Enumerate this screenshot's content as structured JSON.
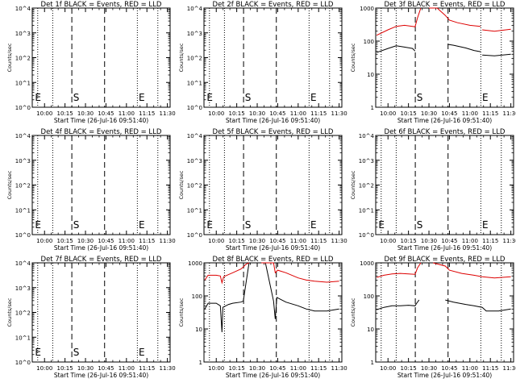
{
  "figure": {
    "xlabel": "Start Time (26-Jul-16 09:51:40)",
    "ylabel": "Counts/sec",
    "x_tick_labels": [
      "10:00",
      "10:15",
      "10:30",
      "10:45",
      "11:00",
      "11:15",
      "11:30"
    ],
    "colors": {
      "events": "#000000",
      "lld": "#dd0000",
      "axes": "#000000",
      "background": "#ffffff"
    }
  },
  "chart_data": [
    {
      "type": "line",
      "title": "Det 1f BLACK = Events, RED = LLD",
      "xlabel": "Start Time (26-Jul-16 09:51:40)",
      "ylabel": "Counts/sec",
      "xlim": [
        "09:51",
        "11:32"
      ],
      "y_scale": "log",
      "ylim": [
        1,
        10000
      ],
      "y_tick_labels": [
        "10^0",
        "10^1",
        "10^2",
        "10^3",
        "10^4"
      ],
      "vlines_dashed": [
        "10:20",
        "10:44"
      ],
      "vlines_dotted": [
        "09:55",
        "10:06",
        "11:08",
        "11:23"
      ],
      "markers": [
        {
          "text": "E",
          "x": "09:53"
        },
        {
          "text": "S",
          "x": "10:21"
        },
        {
          "text": "E",
          "x": "11:09"
        }
      ],
      "series": []
    },
    {
      "type": "line",
      "title": "Det 2f BLACK = Events, RED = LLD",
      "xlabel": "Start Time (26-Jul-16 09:51:40)",
      "ylabel": "Counts/sec",
      "xlim": [
        "09:51",
        "11:32"
      ],
      "y_scale": "log",
      "ylim": [
        1,
        10000
      ],
      "y_tick_labels": [
        "10^0",
        "10^1",
        "10^2",
        "10^3",
        "10^4"
      ],
      "vlines_dashed": [
        "10:20",
        "10:44"
      ],
      "vlines_dotted": [
        "09:55",
        "10:06",
        "11:08",
        "11:23"
      ],
      "markers": [
        {
          "text": "E",
          "x": "09:53"
        },
        {
          "text": "S",
          "x": "10:21"
        },
        {
          "text": "E",
          "x": "11:09"
        }
      ],
      "series": []
    },
    {
      "type": "line",
      "title": "Det 3f BLACK = Events, RED = LLD",
      "xlabel": "Start Time (26-Jul-16 09:51:40)",
      "ylabel": "Counts/sec",
      "xlim": [
        "09:51",
        "11:32"
      ],
      "y_scale": "log",
      "ylim": [
        1,
        1000
      ],
      "y_tick_labels": [
        "1",
        "10",
        "100",
        "1000"
      ],
      "vlines_dashed": [
        "10:20",
        "10:44"
      ],
      "vlines_dotted": [
        "09:55",
        "10:06",
        "11:08",
        "11:23"
      ],
      "markers": [
        {
          "text": "S",
          "x": "10:21"
        },
        {
          "text": "E",
          "x": "11:09"
        }
      ],
      "series": [
        {
          "name": "Events",
          "color": "#000000",
          "segments": [
            [
              [
                9.86,
                45
              ],
              [
                10.0,
                60
              ],
              [
                10.1,
                72
              ],
              [
                10.2,
                66
              ],
              [
                10.3,
                60
              ],
              [
                10.33,
                50
              ]
            ],
            [
              [
                10.73,
                80
              ],
              [
                10.8,
                75
              ],
              [
                10.95,
                62
              ],
              [
                11.05,
                52
              ],
              [
                11.13,
                48
              ]
            ],
            [
              [
                11.15,
                38
              ],
              [
                11.3,
                36
              ],
              [
                11.5,
                40
              ]
            ]
          ]
        },
        {
          "name": "LLD",
          "color": "#dd0000",
          "segments": [
            [
              [
                9.86,
                150
              ],
              [
                10.0,
                220
              ],
              [
                10.1,
                280
              ],
              [
                10.2,
                300
              ],
              [
                10.3,
                280
              ],
              [
                10.33,
                270
              ],
              [
                10.36,
                500
              ],
              [
                10.4,
                1000
              ]
            ],
            [
              [
                10.5,
                1000
              ],
              [
                10.6,
                1000
              ],
              [
                10.7,
                600
              ],
              [
                10.75,
                430
              ],
              [
                10.85,
                360
              ],
              [
                11.0,
                300
              ],
              [
                11.13,
                280
              ]
            ],
            [
              [
                11.15,
                220
              ],
              [
                11.3,
                200
              ],
              [
                11.5,
                230
              ]
            ]
          ]
        }
      ]
    },
    {
      "type": "line",
      "title": "Det 4f BLACK = Events, RED = LLD",
      "xlabel": "Start Time (26-Jul-16 09:51:40)",
      "ylabel": "Counts/sec",
      "xlim": [
        "09:51",
        "11:32"
      ],
      "y_scale": "log",
      "ylim": [
        1,
        10000
      ],
      "y_tick_labels": [
        "10^0",
        "10^1",
        "10^2",
        "10^3",
        "10^4"
      ],
      "vlines_dashed": [
        "10:20",
        "10:44"
      ],
      "vlines_dotted": [
        "09:55",
        "10:06",
        "11:08",
        "11:23"
      ],
      "markers": [
        {
          "text": "E",
          "x": "09:53"
        },
        {
          "text": "S",
          "x": "10:21"
        },
        {
          "text": "E",
          "x": "11:09"
        }
      ],
      "series": []
    },
    {
      "type": "line",
      "title": "Det 5f BLACK = Events, RED = LLD",
      "xlabel": "Start Time (26-Jul-16 09:51:40)",
      "ylabel": "Counts/sec",
      "xlim": [
        "09:51",
        "11:32"
      ],
      "y_scale": "log",
      "ylim": [
        1,
        10000
      ],
      "y_tick_labels": [
        "10^0",
        "10^1",
        "10^2",
        "10^3",
        "10^4"
      ],
      "vlines_dashed": [
        "10:20",
        "10:44"
      ],
      "vlines_dotted": [
        "09:55",
        "10:06",
        "11:08",
        "11:23"
      ],
      "markers": [
        {
          "text": "E",
          "x": "09:53"
        },
        {
          "text": "S",
          "x": "10:21"
        },
        {
          "text": "E",
          "x": "11:09"
        }
      ],
      "series": []
    },
    {
      "type": "line",
      "title": "Det 6f BLACK = Events, RED = LLD",
      "xlabel": "Start Time (26-Jul-16 09:51:40)",
      "ylabel": "Counts/sec",
      "xlim": [
        "09:51",
        "11:32"
      ],
      "y_scale": "log",
      "ylim": [
        1,
        10000
      ],
      "y_tick_labels": [
        "10^0",
        "10^1",
        "10^2",
        "10^3",
        "10^4"
      ],
      "vlines_dashed": [
        "10:20",
        "10:44"
      ],
      "vlines_dotted": [
        "09:55",
        "10:06",
        "11:08",
        "11:23"
      ],
      "markers": [
        {
          "text": "E",
          "x": "09:53"
        },
        {
          "text": "S",
          "x": "10:21"
        },
        {
          "text": "E",
          "x": "11:09"
        }
      ],
      "series": []
    },
    {
      "type": "line",
      "title": "Det 7f BLACK = Events, RED = LLD",
      "xlabel": "Start Time (26-Jul-16 09:51:40)",
      "ylabel": "Counts/sec",
      "xlim": [
        "09:51",
        "11:32"
      ],
      "y_scale": "log",
      "ylim": [
        1,
        10000
      ],
      "y_tick_labels": [
        "10^0",
        "10^1",
        "10^2",
        "10^3",
        "10^4"
      ],
      "vlines_dashed": [
        "10:20",
        "10:44"
      ],
      "vlines_dotted": [
        "09:55",
        "10:06",
        "11:08",
        "11:23"
      ],
      "markers": [
        {
          "text": "E",
          "x": "09:53"
        },
        {
          "text": "S",
          "x": "10:21"
        },
        {
          "text": "E",
          "x": "11:09"
        }
      ],
      "series": []
    },
    {
      "type": "line",
      "title": "Det 8f BLACK = Events, RED = LLD",
      "xlabel": "Start Time (26-Jul-16 09:51:40)",
      "ylabel": "Counts/sec",
      "xlim": [
        "09:51",
        "11:32"
      ],
      "y_scale": "log",
      "ylim": [
        1,
        1000
      ],
      "y_tick_labels": [
        "1",
        "10",
        "100",
        "1000"
      ],
      "vlines_dashed": [
        "10:20",
        "10:44"
      ],
      "vlines_dotted": [
        "09:55",
        "10:06",
        "11:08",
        "11:23"
      ],
      "markers": [],
      "series": [
        {
          "name": "Events",
          "color": "#000000",
          "segments": [
            [
              [
                9.86,
                40
              ],
              [
                9.9,
                60
              ],
              [
                10.0,
                60
              ],
              [
                10.05,
                50
              ],
              [
                10.07,
                8
              ],
              [
                10.08,
                45
              ],
              [
                10.15,
                55
              ],
              [
                10.2,
                60
              ],
              [
                10.3,
                65
              ],
              [
                10.33,
                70
              ],
              [
                10.35,
                150
              ],
              [
                10.4,
                1000
              ]
            ],
            [
              [
                10.5,
                1000
              ],
              [
                10.6,
                1000
              ],
              [
                10.7,
                70
              ],
              [
                10.72,
                20
              ],
              [
                10.74,
                90
              ],
              [
                10.85,
                65
              ],
              [
                11.0,
                50
              ],
              [
                11.1,
                40
              ],
              [
                11.2,
                35
              ],
              [
                11.35,
                35
              ],
              [
                11.5,
                40
              ]
            ]
          ]
        },
        {
          "name": "LLD",
          "color": "#dd0000",
          "segments": [
            [
              [
                9.86,
                300
              ],
              [
                9.9,
                420
              ],
              [
                10.0,
                420
              ],
              [
                10.05,
                400
              ],
              [
                10.07,
                250
              ],
              [
                10.09,
                380
              ],
              [
                10.2,
                500
              ],
              [
                10.3,
                650
              ],
              [
                10.33,
                750
              ],
              [
                10.36,
                900
              ],
              [
                10.4,
                1000
              ]
            ],
            [
              [
                10.55,
                1000
              ],
              [
                10.7,
                1000
              ],
              [
                10.72,
                500
              ],
              [
                10.75,
                600
              ],
              [
                10.85,
                500
              ],
              [
                11.0,
                350
              ],
              [
                11.1,
                300
              ],
              [
                11.2,
                280
              ],
              [
                11.35,
                260
              ],
              [
                11.5,
                280
              ]
            ]
          ]
        }
      ]
    },
    {
      "type": "line",
      "title": "Det 9f BLACK = Events, RED = LLD",
      "xlabel": "Start Time (26-Jul-16 09:51:40)",
      "ylabel": "Counts/sec",
      "xlim": [
        "09:51",
        "11:32"
      ],
      "y_scale": "log",
      "ylim": [
        1,
        1000
      ],
      "y_tick_labels": [
        "1",
        "10",
        "100",
        "1000"
      ],
      "vlines_dashed": [
        "10:20",
        "10:44"
      ],
      "vlines_dotted": [
        "09:55",
        "10:06",
        "11:08",
        "11:23"
      ],
      "markers": [],
      "series": [
        {
          "name": "Events",
          "color": "#000000",
          "segments": [
            [
              [
                9.86,
                38
              ],
              [
                9.95,
                45
              ],
              [
                10.05,
                50
              ],
              [
                10.15,
                50
              ],
              [
                10.25,
                52
              ],
              [
                10.33,
                50
              ],
              [
                10.35,
                60
              ],
              [
                10.38,
                75
              ]
            ],
            [
              [
                10.7,
                75
              ],
              [
                10.8,
                65
              ],
              [
                10.95,
                55
              ],
              [
                11.05,
                50
              ],
              [
                11.15,
                45
              ],
              [
                11.2,
                35
              ],
              [
                11.35,
                35
              ],
              [
                11.5,
                40
              ]
            ]
          ]
        },
        {
          "name": "LLD",
          "color": "#dd0000",
          "segments": [
            [
              [
                9.86,
                360
              ],
              [
                9.95,
                420
              ],
              [
                10.05,
                460
              ],
              [
                10.15,
                480
              ],
              [
                10.25,
                460
              ],
              [
                10.33,
                450
              ],
              [
                10.36,
                700
              ],
              [
                10.4,
                1000
              ]
            ],
            [
              [
                10.55,
                1000
              ],
              [
                10.7,
                800
              ],
              [
                10.75,
                600
              ],
              [
                10.9,
                480
              ],
              [
                11.05,
                420
              ],
              [
                11.15,
                380
              ],
              [
                11.3,
                350
              ],
              [
                11.5,
                380
              ]
            ]
          ]
        }
      ]
    }
  ]
}
